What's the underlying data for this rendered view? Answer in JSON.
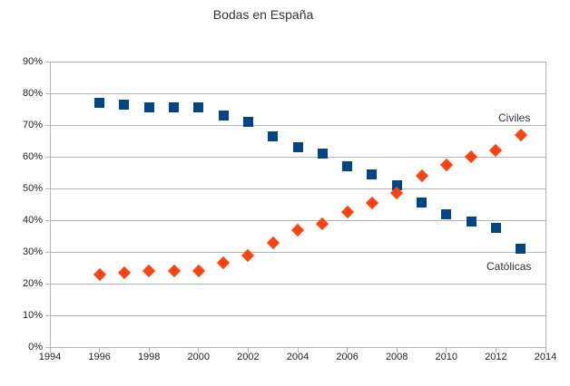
{
  "chart_data": {
    "type": "scatter",
    "title": "Bodas en España",
    "x": [
      1996,
      1997,
      1998,
      1999,
      2000,
      2001,
      2002,
      2003,
      2004,
      2005,
      2006,
      2007,
      2008,
      2009,
      2010,
      2011,
      2012,
      2013
    ],
    "series": [
      {
        "name": "Católicas",
        "marker": "square",
        "color": "#004586",
        "values": [
          77,
          76.5,
          75.5,
          75.5,
          75.5,
          73,
          71,
          66.5,
          63,
          61,
          57,
          54.5,
          51,
          45.5,
          42,
          39.5,
          37.5,
          31
        ]
      },
      {
        "name": "Civiles",
        "marker": "diamond",
        "color": "#FF420E",
        "values": [
          23,
          23.5,
          24,
          24,
          24,
          26.5,
          29,
          33,
          37,
          39,
          42.5,
          45.5,
          48.5,
          54,
          57.5,
          60,
          62,
          67
        ]
      }
    ],
    "xlim": [
      1994,
      2014
    ],
    "ylim": [
      0,
      90
    ],
    "x_ticks": [
      {
        "value": 1994,
        "label": "1994"
      },
      {
        "value": 1996,
        "label": "1996"
      },
      {
        "value": 1998,
        "label": "1998"
      },
      {
        "value": 2000,
        "label": "2000"
      },
      {
        "value": 2002,
        "label": "2002"
      },
      {
        "value": 2004,
        "label": "2004"
      },
      {
        "value": 2006,
        "label": "2006"
      },
      {
        "value": 2008,
        "label": "2008"
      },
      {
        "value": 2010,
        "label": "2010"
      },
      {
        "value": 2012,
        "label": "2012"
      },
      {
        "value": 2014,
        "label": "2014"
      }
    ],
    "y_ticks": [
      {
        "value": 0,
        "label": "0%"
      },
      {
        "value": 10,
        "label": "10%"
      },
      {
        "value": 20,
        "label": "20%"
      },
      {
        "value": 30,
        "label": "30%"
      },
      {
        "value": 40,
        "label": "40%"
      },
      {
        "value": 50,
        "label": "50%"
      },
      {
        "value": 60,
        "label": "60%"
      },
      {
        "value": 70,
        "label": "70%"
      },
      {
        "value": 80,
        "label": "80%"
      },
      {
        "value": 90,
        "label": "90%"
      }
    ],
    "grid": "horizontal",
    "legend_position": "none",
    "annotations": [
      {
        "text": "Civiles",
        "x": 2013,
        "y": 67,
        "placement": "above"
      },
      {
        "text": "Católicas",
        "x": 2013,
        "y": 31,
        "placement": "below"
      }
    ],
    "colors": {
      "gridline": "#b3b3b3",
      "axis": "#b3b3b3",
      "text": "#222222",
      "title": "#333333"
    }
  }
}
